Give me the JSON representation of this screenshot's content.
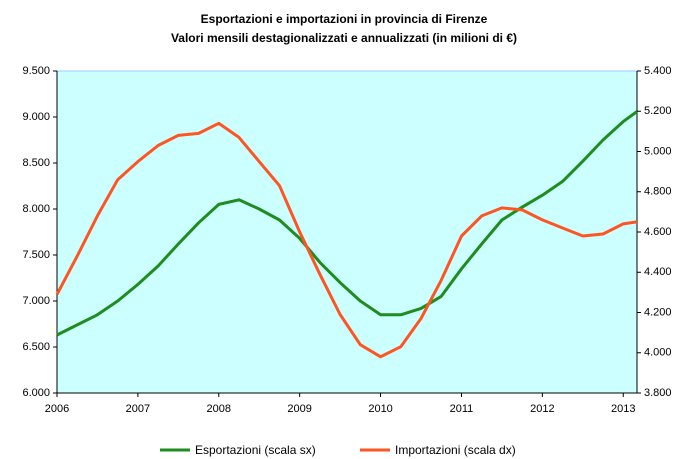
{
  "chart_data": {
    "type": "line",
    "title": "Esportazioni e importazioni in provincia di Firenze",
    "subtitle": "Valori mensili destagionalizzati e annualizzati (in milioni di €)",
    "x": [
      2006,
      2006.25,
      2006.5,
      2006.75,
      2007,
      2007.25,
      2007.5,
      2007.75,
      2008,
      2008.25,
      2008.5,
      2008.75,
      2009,
      2009.25,
      2009.5,
      2009.75,
      2010,
      2010.25,
      2010.5,
      2010.75,
      2011,
      2011.25,
      2011.5,
      2011.75,
      2012,
      2012.25,
      2012.5,
      2012.75,
      2013,
      2013.17
    ],
    "xlim": [
      2006,
      2013.17
    ],
    "xticks": [
      2006,
      2007,
      2008,
      2009,
      2010,
      2011,
      2012,
      2013
    ],
    "ylim": [
      6000,
      9500
    ],
    "yticks": [
      {
        "value": 6000,
        "label": "6.000"
      },
      {
        "value": 6500,
        "label": "6.500"
      },
      {
        "value": 7000,
        "label": "7.000"
      },
      {
        "value": 7500,
        "label": "7.500"
      },
      {
        "value": 8000,
        "label": "8.000"
      },
      {
        "value": 8500,
        "label": "8.500"
      },
      {
        "value": 9000,
        "label": "9.000"
      },
      {
        "value": 9500,
        "label": "9.500"
      }
    ],
    "y2lim": [
      3800,
      5400
    ],
    "y2ticks": [
      {
        "value": 3800,
        "label": "3.800"
      },
      {
        "value": 4000,
        "label": "4.000"
      },
      {
        "value": 4200,
        "label": "4.200"
      },
      {
        "value": 4400,
        "label": "4.400"
      },
      {
        "value": 4600,
        "label": "4.600"
      },
      {
        "value": 4800,
        "label": "4.800"
      },
      {
        "value": 5000,
        "label": "5.000"
      },
      {
        "value": 5200,
        "label": "5.200"
      },
      {
        "value": 5400,
        "label": "5.400"
      }
    ],
    "series": [
      {
        "name": "Esportazioni (scala sx)",
        "color": "#1e8c1e",
        "axis": "y",
        "values": [
          6630,
          6740,
          6850,
          7000,
          7180,
          7380,
          7620,
          7850,
          8050,
          8100,
          8000,
          7880,
          7680,
          7420,
          7200,
          7000,
          6850,
          6850,
          6920,
          7050,
          7350,
          7620,
          7880,
          8020,
          8150,
          8300,
          8520,
          8750,
          8950,
          9060
        ]
      },
      {
        "name": "Importazioni (scala dx)",
        "color": "#ff5522",
        "axis": "y2",
        "values": [
          4290,
          4480,
          4680,
          4860,
          4950,
          5030,
          5080,
          5090,
          5140,
          5070,
          4950,
          4830,
          4600,
          4390,
          4190,
          4040,
          3980,
          4030,
          4170,
          4360,
          4580,
          4680,
          4720,
          4710,
          4660,
          4620,
          4580,
          4590,
          4640,
          4650
        ]
      }
    ],
    "legend": "bottom"
  }
}
